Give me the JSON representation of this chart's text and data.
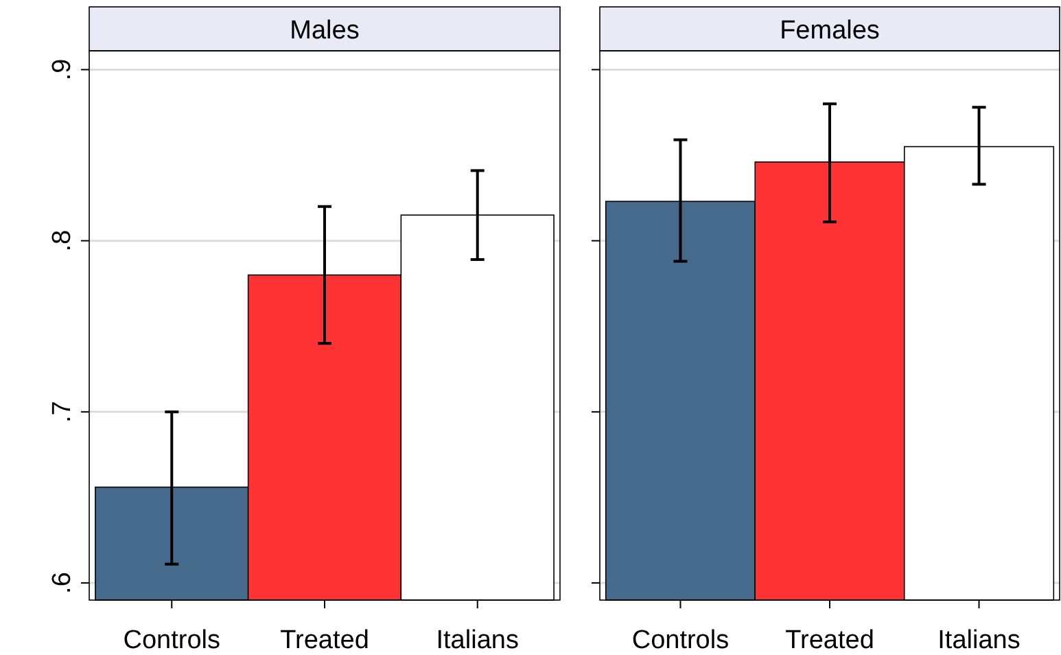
{
  "chart_data": [
    {
      "type": "bar",
      "title": "Males",
      "categories": [
        "Controls",
        "Treated",
        "Italians"
      ],
      "values": [
        0.656,
        0.78,
        0.815
      ],
      "colors": [
        "#466a8b",
        "#ff3333",
        "#ffffff"
      ],
      "errors": [
        [
          0.611,
          0.7
        ],
        [
          0.74,
          0.82
        ],
        [
          0.789,
          0.841
        ]
      ],
      "ylim": [
        0.59,
        0.911
      ],
      "yticks": [
        {
          "value": 0.6,
          "label": ".6"
        },
        {
          "value": 0.7,
          "label": ".7"
        },
        {
          "value": 0.8,
          "label": ".8"
        },
        {
          "value": 0.9,
          "label": ".9"
        }
      ],
      "grid": "y"
    },
    {
      "type": "bar",
      "title": "Females",
      "categories": [
        "Controls",
        "Treated",
        "Italians"
      ],
      "values": [
        0.823,
        0.846,
        0.855
      ],
      "colors": [
        "#466a8b",
        "#ff3333",
        "#ffffff"
      ],
      "errors": [
        [
          0.788,
          0.859
        ],
        [
          0.811,
          0.88
        ],
        [
          0.833,
          0.878
        ]
      ],
      "ylim": [
        0.59,
        0.911
      ],
      "yticks": [
        {
          "value": 0.6,
          "label": null
        },
        {
          "value": 0.7,
          "label": null
        },
        {
          "value": 0.8,
          "label": null
        },
        {
          "value": 0.9,
          "label": null
        }
      ],
      "grid": "y",
      "tick_labels": "x"
    }
  ]
}
